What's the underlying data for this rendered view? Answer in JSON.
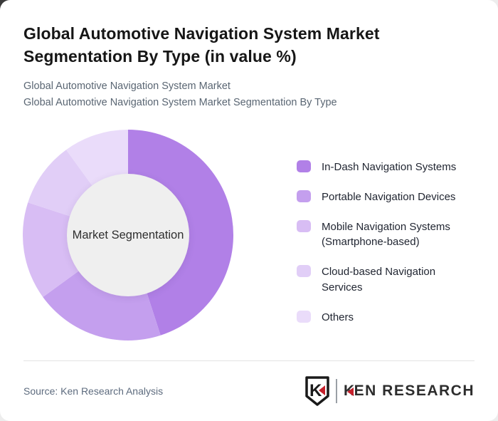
{
  "page": {
    "card_background": "#ffffff",
    "outer_background": "#ededed"
  },
  "header": {
    "title": "Global Automotive Navigation System Market Segmentation By Type (in value %)",
    "subtitle_line1": "Global Automotive Navigation System Market",
    "subtitle_line2": "Global Automotive Navigation System Market Segmentation By Type"
  },
  "chart_data": {
    "type": "pie",
    "variant": "donut",
    "title": "Global Automotive Navigation System Market Segmentation By Type (in value %)",
    "center_label": "Market Segmentation",
    "center_color": "#efefef",
    "unit": "%",
    "start_angle_deg": 0,
    "direction": "clockwise",
    "legend_position": "right",
    "segments": [
      {
        "label": "In-Dash Navigation Systems",
        "value": 45,
        "color": "#b180e7"
      },
      {
        "label": "Portable Navigation Devices",
        "value": 20,
        "color": "#c49fee"
      },
      {
        "label": "Mobile Navigation Systems (Smartphone-based)",
        "value": 15,
        "color": "#d8bdf4"
      },
      {
        "label": "Cloud-based Navigation Services",
        "value": 10,
        "color": "#e1cef7"
      },
      {
        "label": "Others",
        "value": 10,
        "color": "#eadcfa"
      }
    ]
  },
  "footer": {
    "source": "Source: Ken Research Analysis",
    "logo": {
      "shield_letter": "K",
      "brand_prefix": "K",
      "brand_suffix": "EN RESEARCH",
      "accent_color": "#c5202b"
    }
  }
}
